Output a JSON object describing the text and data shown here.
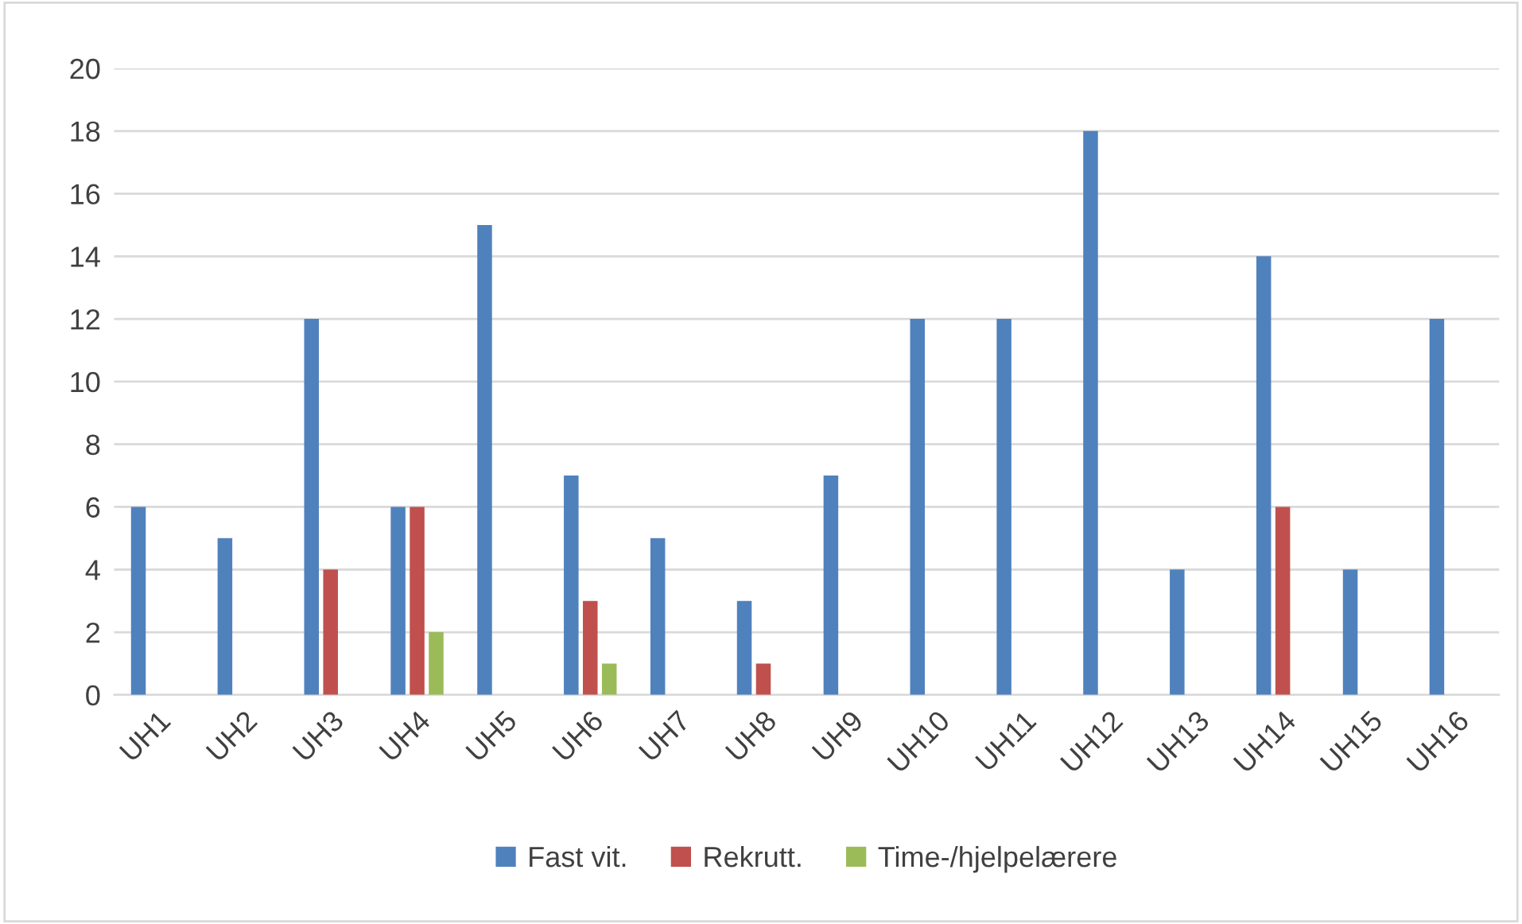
{
  "chart_data": {
    "type": "bar",
    "categories": [
      "UH1",
      "UH2",
      "UH3",
      "UH4",
      "UH5",
      "UH6",
      "UH7",
      "UH8",
      "UH9",
      "UH10",
      "UH11",
      "UH12",
      "UH13",
      "UH14",
      "UH15",
      "UH16"
    ],
    "series": [
      {
        "name": "Fast vit.",
        "color": "#4f81bd",
        "values": [
          6,
          5,
          12,
          6,
          15,
          7,
          5,
          3,
          7,
          12,
          12,
          18,
          4,
          14,
          4,
          12
        ]
      },
      {
        "name": "Rekrutt.",
        "color": "#c0504d",
        "values": [
          0,
          0,
          4,
          6,
          0,
          3,
          0,
          1,
          0,
          0,
          0,
          0,
          0,
          6,
          0,
          0
        ]
      },
      {
        "name": "Time-/hjelpelærere",
        "color": "#9bbb59",
        "values": [
          0,
          0,
          0,
          2,
          0,
          1,
          0,
          0,
          0,
          0,
          0,
          0,
          0,
          0,
          0,
          0
        ]
      }
    ],
    "ylim": [
      0,
      20
    ],
    "yticks": [
      0,
      2,
      4,
      6,
      8,
      10,
      12,
      14,
      16,
      18,
      20
    ],
    "grid": "y",
    "legend": "bottom"
  }
}
